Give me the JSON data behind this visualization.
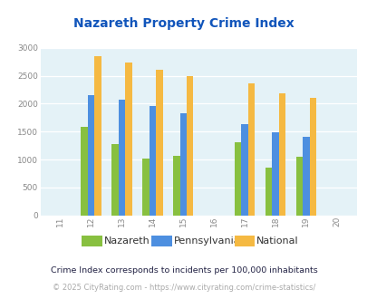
{
  "title": "Nazareth Property Crime Index",
  "all_years": [
    2011,
    2012,
    2013,
    2014,
    2015,
    2016,
    2017,
    2018,
    2019,
    2020
  ],
  "data_years": [
    2012,
    2013,
    2014,
    2015,
    2017,
    2018,
    2019
  ],
  "nazareth": [
    1590,
    1280,
    1010,
    1065,
    1310,
    855,
    1055
  ],
  "pennsylvania": [
    2155,
    2065,
    1950,
    1825,
    1640,
    1490,
    1410
  ],
  "national": [
    2855,
    2745,
    2610,
    2500,
    2360,
    2185,
    2100
  ],
  "color_nazareth": "#88c040",
  "color_pennsylvania": "#4d8fe0",
  "color_national": "#f5b942",
  "bg_color": "#e4f2f7",
  "title_color": "#1155bb",
  "ylim": [
    0,
    3000
  ],
  "yticks": [
    0,
    500,
    1000,
    1500,
    2000,
    2500,
    3000
  ],
  "legend_labels": [
    "Nazareth",
    "Pennsylvania",
    "National"
  ],
  "footnote1": "Crime Index corresponds to incidents per 100,000 inhabitants",
  "footnote2": "© 2025 CityRating.com - https://www.cityrating.com/crime-statistics/",
  "footnote1_color": "#222244",
  "footnote2_color": "#aaaaaa"
}
